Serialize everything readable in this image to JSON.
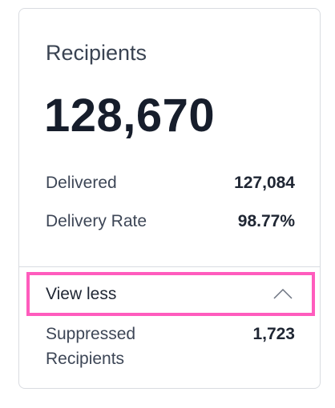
{
  "card": {
    "title": "Recipients",
    "total": "128,670",
    "rows": [
      {
        "label": "Delivered",
        "value": "127,084"
      },
      {
        "label": "Delivery Rate",
        "value": "98.77%"
      }
    ],
    "toggle": "View less",
    "extra_rows": [
      {
        "label": "Suppressed Recipients",
        "value": "1,723"
      }
    ]
  }
}
